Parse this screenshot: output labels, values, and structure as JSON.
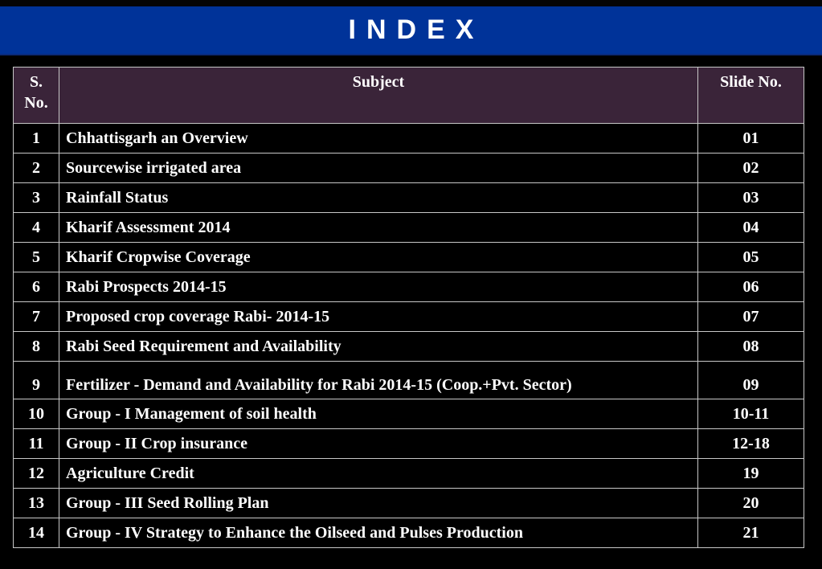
{
  "banner": {
    "title": "INDEX",
    "color": "#003399"
  },
  "table": {
    "headers": {
      "sno": "S. No.",
      "subject": "Subject",
      "slide": "Slide No."
    },
    "header_bg": "#3a2439",
    "rows": [
      {
        "sno": "1",
        "subject": "Chhattisgarh an Overview",
        "slide": "01"
      },
      {
        "sno": "2",
        "subject": "Sourcewise irrigated area",
        "slide": "02"
      },
      {
        "sno": "3",
        "subject": "Rainfall Status",
        "slide": "03"
      },
      {
        "sno": "4",
        "subject": "Kharif Assessment 2014",
        "slide": "04"
      },
      {
        "sno": "5",
        "subject": "Kharif Cropwise Coverage",
        "slide": "05"
      },
      {
        "sno": "6",
        "subject": "Rabi Prospects 2014-15",
        "slide": "06"
      },
      {
        "sno": "7",
        "subject": "Proposed crop coverage Rabi- 2014-15",
        "slide": "07"
      },
      {
        "sno": "8",
        "subject": "Rabi Seed Requirement and Availability",
        "slide": "08"
      },
      {
        "sno": "9",
        "subject": "Fertilizer - Demand and Availability for Rabi 2014-15 (Coop.+Pvt. Sector)",
        "slide": "09"
      },
      {
        "sno": "10",
        "subject": "Group - I Management of soil health",
        "slide": "10-11"
      },
      {
        "sno": "11",
        "subject": "Group - II Crop insurance",
        "slide": "12-18"
      },
      {
        "sno": "12",
        "subject": "Agriculture Credit",
        "slide": "19"
      },
      {
        "sno": "13",
        "subject": "Group - III Seed Rolling Plan",
        "slide": "20"
      },
      {
        "sno": "14",
        "subject": "Group - IV Strategy to Enhance the Oilseed and Pulses Production",
        "slide": "21"
      }
    ]
  }
}
